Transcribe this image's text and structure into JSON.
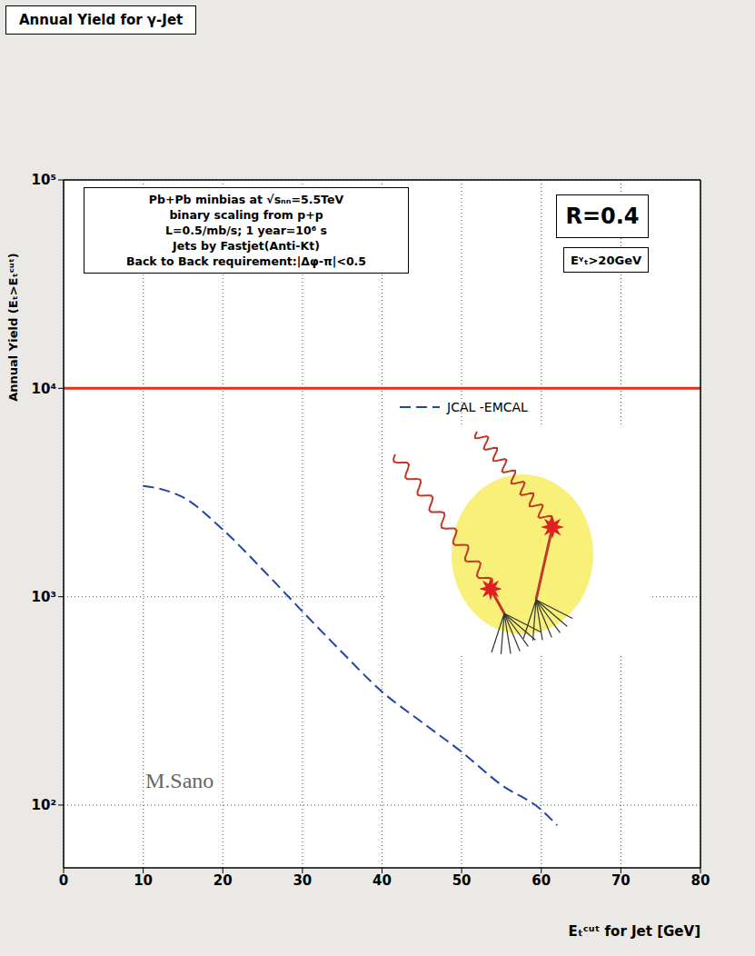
{
  "chart_data": {
    "type": "line",
    "title": "Annual Yield for γ-Jet",
    "x_label": "Eₜᶜᵘᵗ for Jet [GeV]",
    "y_label": "Annual Yield (Eₜ>Eₜᶜᵘᵗ)",
    "x": [
      10,
      12,
      15,
      20,
      25,
      30,
      35,
      40,
      45,
      50,
      55,
      60,
      62
    ],
    "series": [
      {
        "name": "JCAL -EMCAL",
        "color": "#2145a6",
        "line_style": "dashed",
        "marker": "none",
        "values": [
          3400,
          3300,
          3000,
          2100,
          1350,
          850,
          540,
          350,
          250,
          180,
          125,
          95,
          80
        ]
      }
    ],
    "xlim": [
      0,
      80
    ],
    "xticks": [
      0,
      10,
      20,
      30,
      40,
      50,
      60,
      70,
      80
    ],
    "ylim": [
      50,
      100000
    ],
    "yticks": [
      {
        "value": 100,
        "label": "10²"
      },
      {
        "value": 1000,
        "label": "10³"
      },
      {
        "value": 10000,
        "label": "10⁴"
      },
      {
        "value": 100000,
        "label": "10⁵"
      }
    ],
    "log": "y",
    "grid": true,
    "legend": "right",
    "info_box": [
      "Pb+Pb minbias at √sₙₙ=5.5TeV",
      "binary scaling from p+p",
      "L=0.5/mb/s; 1 year=10⁶ s",
      "Jets by Fastjet(Anti-Kt)",
      "Back to Back requirement:|Δφ-π|<0.5"
    ],
    "badges": [
      "R=0.4",
      "Eᵞₜ>20GeV"
    ],
    "credit": "M.Sano",
    "hline": {
      "value": 10000,
      "color": "#e3301c"
    }
  }
}
